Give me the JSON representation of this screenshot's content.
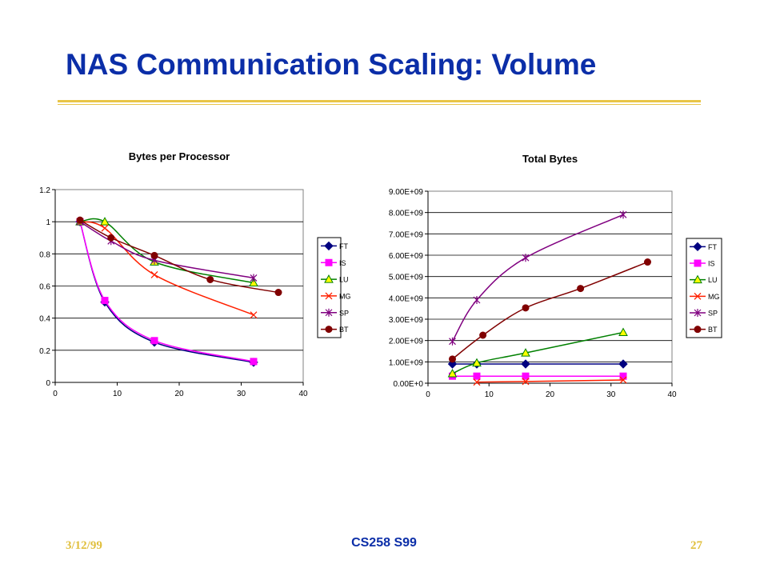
{
  "slide": {
    "title": "NAS Communication Scaling: Volume",
    "footer_date": "3/12/99",
    "footer_course": "CS258 S99",
    "footer_page": "27"
  },
  "colors": {
    "title": "#0b2ea8",
    "rule": "#e8c547",
    "footer_gold": "#e0bf3d"
  },
  "chart_data": [
    {
      "type": "line",
      "title": "Bytes per Processor",
      "xlim": [
        0,
        40
      ],
      "ylim": [
        0,
        1.2
      ],
      "x_ticks": [
        "0",
        "10",
        "20",
        "30",
        "40"
      ],
      "y_ticks": [
        "0",
        "0.2",
        "0.4",
        "0.6",
        "0.8",
        "1",
        "1.2"
      ],
      "grid": true,
      "legend": "right",
      "series": [
        {
          "name": "FT",
          "color": "#000080",
          "marker": "diamond",
          "x": [
            4,
            8,
            16,
            32
          ],
          "y": [
            1.0,
            0.5,
            0.25,
            0.125
          ]
        },
        {
          "name": "IS",
          "color": "#ff00ff",
          "marker": "square",
          "x": [
            4,
            8,
            16,
            32
          ],
          "y": [
            1.0,
            0.51,
            0.26,
            0.13
          ]
        },
        {
          "name": "LU",
          "color": "#008000",
          "marker": "triangle",
          "x": [
            4,
            8,
            16,
            32
          ],
          "y": [
            1.0,
            1.0,
            0.75,
            0.62
          ]
        },
        {
          "name": "MG",
          "color": "#ff2000",
          "marker": "x",
          "x": [
            4,
            8,
            16,
            32
          ],
          "y": [
            1.0,
            0.96,
            0.67,
            0.42
          ]
        },
        {
          "name": "SP",
          "color": "#800080",
          "marker": "star",
          "x": [
            4,
            9,
            16,
            32
          ],
          "y": [
            1.0,
            0.88,
            0.76,
            0.65
          ]
        },
        {
          "name": "BT",
          "color": "#800000",
          "marker": "circle",
          "x": [
            4,
            9,
            16,
            25,
            36
          ],
          "y": [
            1.01,
            0.9,
            0.79,
            0.64,
            0.56
          ]
        }
      ]
    },
    {
      "type": "line",
      "title": "Total Bytes",
      "xlim": [
        0,
        40
      ],
      "ylim": [
        0,
        9000000000
      ],
      "x_ticks": [
        "0",
        "10",
        "20",
        "30",
        "40"
      ],
      "y_ticks": [
        "0.00E+0",
        "1.00E+09",
        "2.00E+09",
        "3.00E+09",
        "4.00E+09",
        "5.00E+09",
        "6.00E+09",
        "7.00E+09",
        "8.00E+09",
        "9.00E+09"
      ],
      "grid": true,
      "legend": "right",
      "series": [
        {
          "name": "FT",
          "color": "#000080",
          "marker": "diamond",
          "x": [
            4,
            8,
            16,
            32
          ],
          "y": [
            900000000,
            900000000,
            900000000,
            900000000
          ]
        },
        {
          "name": "IS",
          "color": "#ff00ff",
          "marker": "square",
          "x": [
            4,
            8,
            16,
            32
          ],
          "y": [
            330000000,
            330000000,
            330000000,
            330000000
          ]
        },
        {
          "name": "LU",
          "color": "#008000",
          "marker": "triangle",
          "x": [
            4,
            8,
            16,
            32
          ],
          "y": [
            450000000,
            950000000,
            1420000000,
            2380000000
          ]
        },
        {
          "name": "MG",
          "color": "#ff2000",
          "marker": "x",
          "x": [
            8,
            16,
            32
          ],
          "y": [
            50000000,
            80000000,
            150000000
          ]
        },
        {
          "name": "SP",
          "color": "#800080",
          "marker": "star",
          "x": [
            4,
            8,
            16,
            32
          ],
          "y": [
            1960000000,
            3900000000,
            5880000000,
            7900000000
          ]
        },
        {
          "name": "BT",
          "color": "#800000",
          "marker": "circle",
          "x": [
            4,
            9,
            16,
            25,
            36
          ],
          "y": [
            1130000000,
            2250000000,
            3530000000,
            4440000000,
            5680000000
          ]
        }
      ]
    }
  ]
}
